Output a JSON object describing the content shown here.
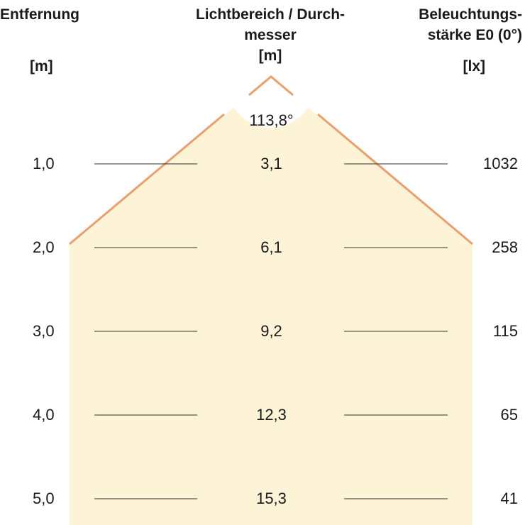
{
  "headers": {
    "distance": {
      "title": "Entfernung",
      "unit": "[m]"
    },
    "diameter": {
      "title_line1": "Lichtbereich / Durch-",
      "title_line2": "messer",
      "unit": "[m]"
    },
    "illuminance": {
      "title_line1": "Beleuchtungs-",
      "title_line2": "stärke E0 (0°)",
      "unit": "[lx]"
    }
  },
  "beam_angle": "113,8°",
  "rows": [
    {
      "distance": "1,0",
      "diameter": "3,1",
      "lux": "1032"
    },
    {
      "distance": "2,0",
      "diameter": "6,1",
      "lux": "258"
    },
    {
      "distance": "3,0",
      "diameter": "9,2",
      "lux": "115"
    },
    {
      "distance": "4,0",
      "diameter": "12,3",
      "lux": "65"
    },
    {
      "distance": "5,0",
      "diameter": "15,3",
      "lux": "41"
    }
  ],
  "colors": {
    "light_fill": "#fdf3d6",
    "beam_edge": "#e8a070",
    "rule": "#333333"
  }
}
